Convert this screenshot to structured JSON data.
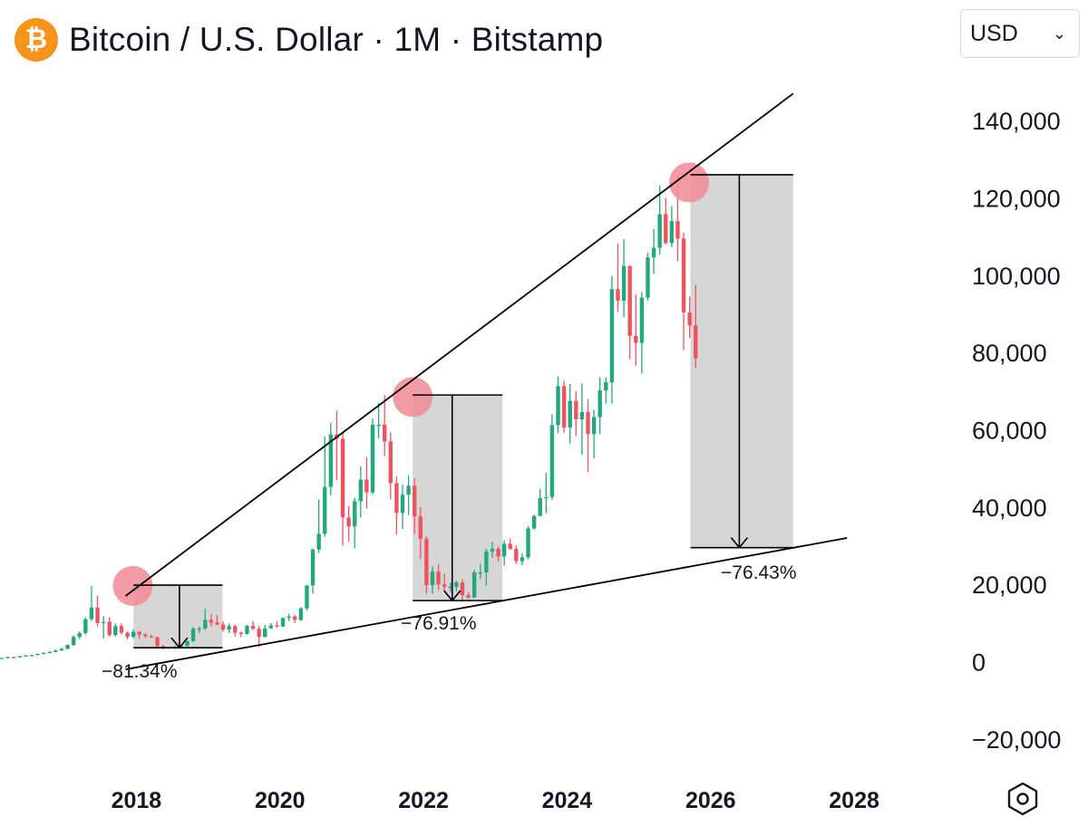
{
  "header": {
    "coin_symbol": "₿",
    "title": "Bitcoin / U.S. Dollar · 1M · Bitstamp",
    "currency": "USD",
    "chevron": "⌄"
  },
  "icons": {
    "coin": "bitcoin-icon",
    "settings": "hexagon-gear-icon"
  },
  "colors": {
    "up": "#22a77e",
    "down": "#ef5360",
    "box": "#d6d6d6",
    "peak": "#f28b96",
    "line": "#000000"
  },
  "chart_data": {
    "type": "candlestick",
    "title": "Bitcoin / U.S. Dollar · 1M · Bitstamp",
    "interval": "1M",
    "exchange": "Bitstamp",
    "currency": "USD",
    "ylim": [
      -28000,
      152000
    ],
    "xlim": [
      2016.1,
      2029.3
    ],
    "y_ticks": [
      140000,
      120000,
      100000,
      80000,
      60000,
      40000,
      20000,
      0,
      -20000
    ],
    "y_tick_labels": [
      "140,000",
      "120,000",
      "100,000",
      "80,000",
      "60,000",
      "40,000",
      "20,000",
      "0",
      "−20,000"
    ],
    "x_ticks": [
      2018,
      2020,
      2022,
      2024,
      2026,
      2028
    ],
    "x_tick_labels": [
      "2018",
      "2020",
      "2022",
      "2024",
      "2026",
      "2028"
    ],
    "trend_lines": [
      {
        "name": "upper-trendline",
        "from": [
          2017.85,
          17000
        ],
        "to": [
          2027.15,
          147000
        ]
      },
      {
        "name": "lower-trendline",
        "from": [
          2017.85,
          -2000
        ],
        "to": [
          2027.9,
          32000
        ]
      }
    ],
    "drawdowns": [
      {
        "label": "−81.34%",
        "x_start": 2017.96,
        "x_end": 2019.2,
        "y_top": 19800,
        "y_bottom": 3600,
        "arrow_x": 2018.6,
        "peak": [
          2017.95,
          19600
        ]
      },
      {
        "label": "−76.91%",
        "x_start": 2021.85,
        "x_end": 2023.1,
        "y_top": 69000,
        "y_bottom": 15800,
        "arrow_x": 2022.4,
        "peak": [
          2021.85,
          68500
        ]
      },
      {
        "label": "−76.43%",
        "x_start": 2025.72,
        "x_end": 2027.15,
        "y_top": 126000,
        "y_bottom": 29500,
        "arrow_x": 2026.4,
        "peak": [
          2025.7,
          124000
        ]
      }
    ],
    "candles": [
      [
        1000,
        1000,
        1000,
        1000
      ],
      [
        1000,
        1000,
        1000,
        1000
      ],
      [
        1000,
        1200,
        1300,
        900
      ],
      [
        1200,
        1100,
        1300,
        1000
      ],
      [
        1100,
        1400,
        1500,
        1050
      ],
      [
        1400,
        1600,
        1700,
        1350
      ],
      [
        1600,
        1700,
        1800,
        1500
      ],
      [
        1700,
        2000,
        2100,
        1650
      ],
      [
        2000,
        2300,
        2400,
        1900
      ],
      [
        2300,
        2500,
        2700,
        2200
      ],
      [
        2500,
        2900,
        3100,
        2400
      ],
      [
        2900,
        3300,
        3600,
        2800
      ],
      [
        3300,
        4300,
        4500,
        3200
      ],
      [
        4300,
        6400,
        6800,
        4100
      ],
      [
        6400,
        7400,
        7800,
        5800
      ],
      [
        7400,
        11000,
        11500,
        7000
      ],
      [
        11000,
        14000,
        19600,
        10500
      ],
      [
        14000,
        10000,
        17000,
        9000
      ],
      [
        10000,
        10300,
        11800,
        6000
      ],
      [
        10300,
        6900,
        11500,
        6500
      ],
      [
        6900,
        9200,
        9900,
        6500
      ],
      [
        9200,
        7500,
        9900,
        7000
      ],
      [
        7500,
        6400,
        7800,
        5800
      ],
      [
        6400,
        7700,
        8400,
        6100
      ],
      [
        7700,
        7000,
        7900,
        5900
      ],
      [
        7000,
        6600,
        7400,
        6100
      ],
      [
        6600,
        6300,
        6900,
        6100
      ],
      [
        6300,
        4000,
        6500,
        3600
      ],
      [
        4000,
        3700,
        4300,
        3200
      ],
      [
        3700,
        3400,
        3800,
        3300
      ],
      [
        3400,
        3800,
        4200,
        3300
      ],
      [
        3800,
        4100,
        4200,
        3700
      ],
      [
        4100,
        5300,
        5500,
        3900
      ],
      [
        5300,
        8500,
        9000,
        5100
      ],
      [
        8500,
        8600,
        9100,
        7400
      ],
      [
        8600,
        10800,
        13800,
        8200
      ],
      [
        10800,
        10100,
        12300,
        9100
      ],
      [
        10100,
        9600,
        12000,
        9400
      ],
      [
        9600,
        8300,
        10400,
        7800
      ],
      [
        8300,
        9200,
        9900,
        7400
      ],
      [
        9200,
        7500,
        9600,
        6500
      ],
      [
        7500,
        7200,
        7800,
        6400
      ],
      [
        7200,
        9300,
        9500,
        6900
      ],
      [
        9300,
        8500,
        10500,
        8200
      ],
      [
        8500,
        6400,
        9200,
        3800
      ],
      [
        6400,
        8600,
        9500,
        6300
      ],
      [
        8600,
        9400,
        10000,
        8500
      ],
      [
        9400,
        9100,
        10500,
        8800
      ],
      [
        9100,
        11300,
        11400,
        9000
      ],
      [
        11300,
        11700,
        12400,
        10500
      ],
      [
        11700,
        10800,
        12100,
        10000
      ],
      [
        10800,
        13800,
        14100,
        10500
      ],
      [
        13800,
        19700,
        19900,
        13200
      ],
      [
        19700,
        29000,
        29300,
        17600
      ],
      [
        29000,
        33100,
        42000,
        28100
      ],
      [
        33100,
        45200,
        58300,
        32300
      ],
      [
        45200,
        58800,
        61800,
        43000
      ],
      [
        58800,
        57700,
        64900,
        47000
      ],
      [
        57700,
        37300,
        59500,
        30000
      ],
      [
        37300,
        35000,
        40300,
        31000
      ],
      [
        35000,
        41500,
        42400,
        29300
      ],
      [
        41500,
        47100,
        50500,
        37300
      ],
      [
        47100,
        43800,
        52900,
        39600
      ],
      [
        43800,
        61300,
        63000,
        43200
      ],
      [
        61300,
        61300,
        67000,
        57800
      ],
      [
        61300,
        57000,
        69000,
        53200
      ],
      [
        57000,
        46200,
        59300,
        42000
      ],
      [
        46200,
        38500,
        48000,
        32900
      ],
      [
        38500,
        43200,
        45800,
        34300
      ],
      [
        43200,
        45500,
        48200,
        37900
      ],
      [
        45500,
        37600,
        47400,
        33000
      ],
      [
        37600,
        31800,
        40000,
        26600
      ],
      [
        31800,
        19800,
        32400,
        17600
      ],
      [
        19800,
        23300,
        24600,
        17600
      ],
      [
        23300,
        20000,
        25200,
        18600
      ],
      [
        20000,
        19400,
        22800,
        18200
      ],
      [
        19400,
        19400,
        20500,
        18000
      ],
      [
        19400,
        20500,
        21000,
        18200
      ],
      [
        20500,
        17200,
        21400,
        15500
      ],
      [
        17200,
        16600,
        18000,
        16300
      ],
      [
        16600,
        23100,
        23800,
        16500
      ],
      [
        23100,
        23100,
        25200,
        21400
      ],
      [
        23100,
        28500,
        29200,
        19600
      ],
      [
        28500,
        29200,
        31000,
        26900
      ],
      [
        29200,
        27200,
        29800,
        25900
      ],
      [
        27200,
        30500,
        31400,
        24800
      ],
      [
        30500,
        29200,
        31800,
        28900
      ],
      [
        29200,
        26000,
        30100,
        25300
      ],
      [
        26000,
        27000,
        28000,
        24900
      ],
      [
        27000,
        34500,
        35100,
        26500
      ],
      [
        34500,
        37700,
        38000,
        34100
      ],
      [
        37700,
        42300,
        44700,
        37600
      ],
      [
        42300,
        42600,
        48900,
        38500
      ],
      [
        42600,
        61200,
        64000,
        41900
      ],
      [
        61200,
        71300,
        73800,
        59100
      ],
      [
        71300,
        60600,
        72700,
        59200
      ],
      [
        60600,
        67500,
        71900,
        56500
      ],
      [
        67500,
        62700,
        70000,
        58400
      ],
      [
        62700,
        64600,
        72000,
        53500
      ],
      [
        64600,
        58900,
        68000,
        49000
      ],
      [
        58900,
        63300,
        65100,
        52600
      ],
      [
        63300,
        70200,
        73600,
        58900
      ],
      [
        70200,
        72300,
        73600,
        66800
      ],
      [
        72300,
        96400,
        99800,
        66800
      ],
      [
        96400,
        93400,
        108300,
        90500
      ],
      [
        93400,
        102400,
        109300,
        89200
      ],
      [
        102400,
        84300,
        102500,
        78200
      ],
      [
        84300,
        82500,
        95000,
        76600
      ],
      [
        82500,
        94200,
        95700,
        74500
      ],
      [
        94200,
        104600,
        105800,
        93400
      ],
      [
        104600,
        107100,
        112000,
        100400
      ],
      [
        107100,
        115800,
        123200,
        105300
      ],
      [
        115800,
        108300,
        120000,
        108000
      ],
      [
        108300,
        114000,
        117900,
        107300
      ],
      [
        114000,
        109500,
        126000,
        103600
      ],
      [
        109500,
        90400,
        111000,
        80600
      ],
      [
        90400,
        87000,
        94500,
        83800
      ],
      [
        87000,
        78500,
        97500,
        76000
      ]
    ]
  }
}
